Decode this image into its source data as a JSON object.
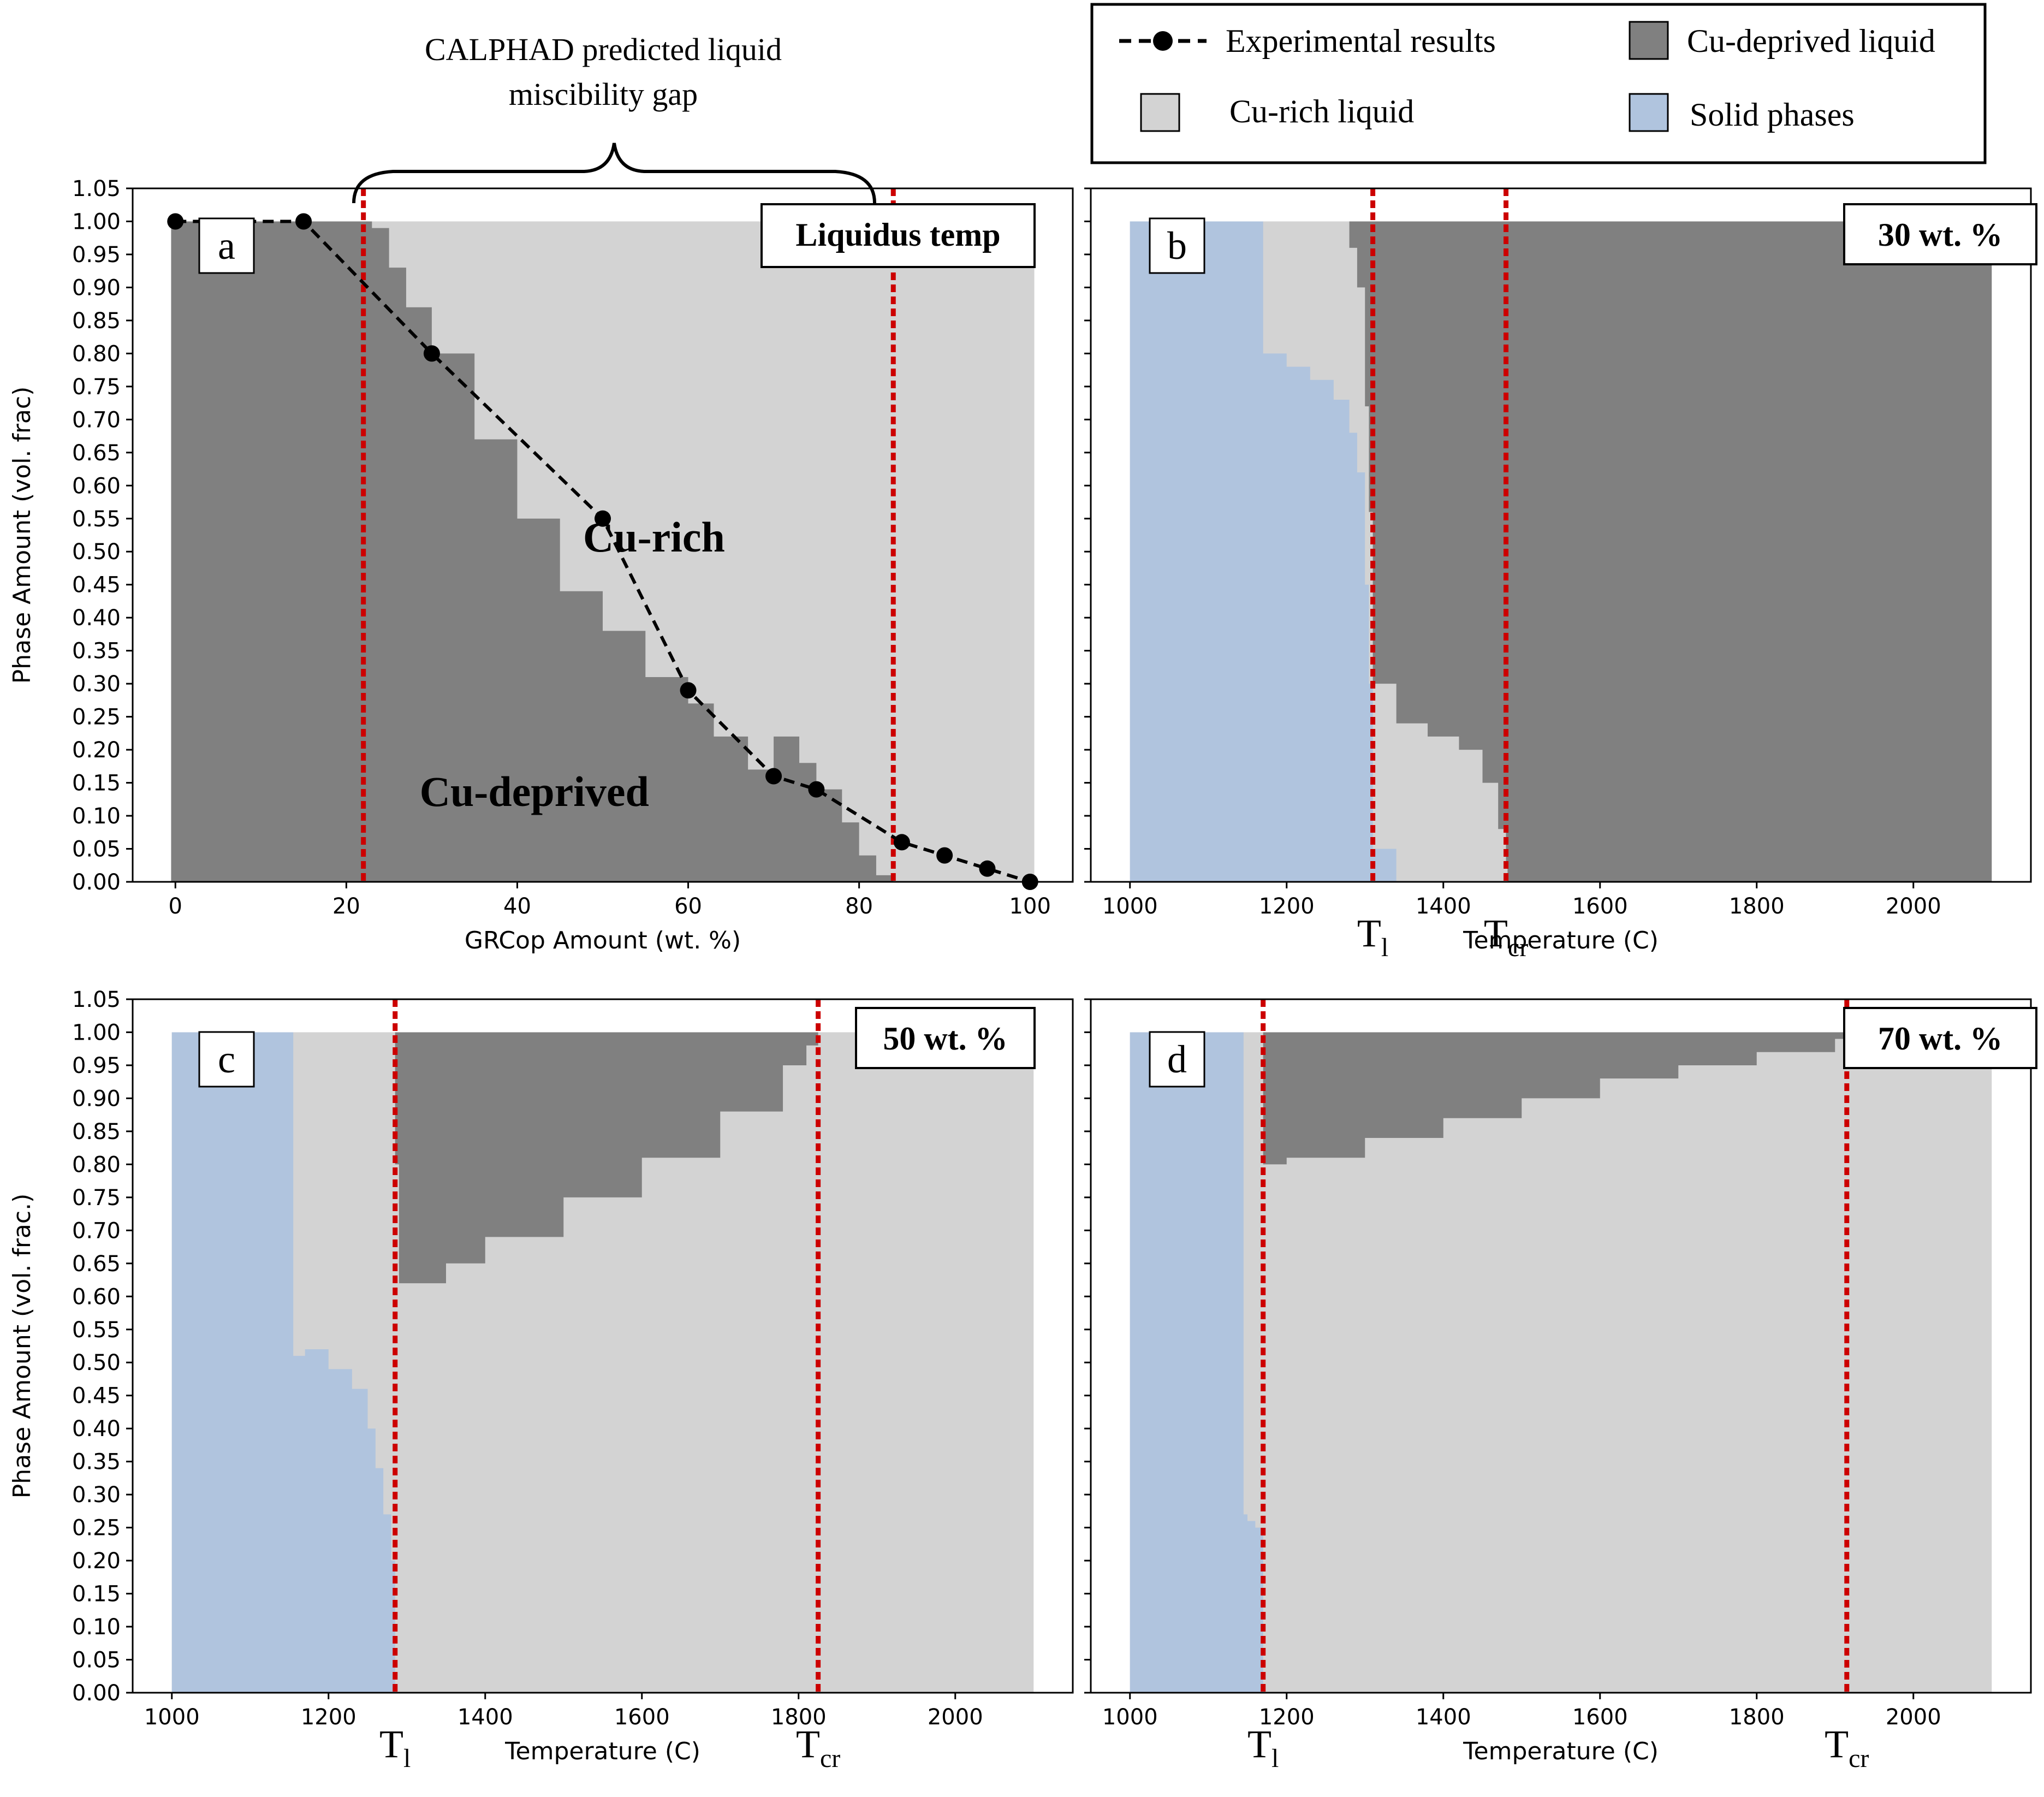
{
  "colors": {
    "cu_rich": "#d3d3d3",
    "cu_deprived": "#808080",
    "solid": "#b0c4de",
    "threshold": "#cc0000",
    "experimental": "#000000"
  },
  "legend": {
    "experimental": "Experimental results",
    "cu_deprived": "Cu-deprived liquid",
    "cu_rich": "Cu-rich liquid",
    "solid": "Solid phases"
  },
  "annotation": {
    "gap_line1": "CALPHAD predicted liquid",
    "gap_line2": "miscibility gap"
  },
  "chart_data": [
    {
      "id": "a",
      "type": "area",
      "panel_label": "a",
      "badge": "Liquidus temp",
      "xlabel": "GRCop Amount (wt. %)",
      "ylabel": "Phase  Amount (vol. frac)",
      "xlim": [
        -5,
        105
      ],
      "ylim": [
        0,
        1.05
      ],
      "xticks": [
        0,
        20,
        40,
        60,
        80,
        100
      ],
      "yticks": [
        0.0,
        0.05,
        0.1,
        0.15,
        0.2,
        0.25,
        0.3,
        0.35,
        0.4,
        0.45,
        0.5,
        0.55,
        0.6,
        0.65,
        0.7,
        0.75,
        0.8,
        0.85,
        0.9,
        0.95,
        1.0,
        1.05
      ],
      "region_labels": {
        "cu_rich": "Cu-rich",
        "cu_deprived": "Cu-deprived"
      },
      "vlines": [
        22,
        84
      ],
      "deprived_boundary": {
        "x": [
          -0.5,
          22,
          22.5,
          23,
          25,
          27,
          30,
          35,
          40,
          45,
          50,
          55,
          60,
          63,
          67,
          70,
          73,
          75,
          78,
          80,
          82,
          84,
          100.5
        ],
        "y": [
          1.0,
          1.0,
          1.0,
          0.99,
          0.93,
          0.87,
          0.8,
          0.67,
          0.55,
          0.44,
          0.38,
          0.31,
          0.27,
          0.22,
          0.17,
          0.22,
          0.18,
          0.14,
          0.09,
          0.04,
          0.01,
          0.0,
          0.0
        ]
      },
      "experimental": {
        "x": [
          0,
          15,
          30,
          50,
          60,
          70,
          75,
          85,
          90,
          95,
          100
        ],
        "y": [
          1.0,
          1.0,
          0.8,
          0.55,
          0.29,
          0.16,
          0.14,
          0.06,
          0.04,
          0.02,
          0.0
        ]
      }
    },
    {
      "id": "b",
      "type": "area",
      "panel_label": "b",
      "badge": "30 wt. %",
      "xlabel": "Temperature (C)",
      "xlim": [
        950,
        2150
      ],
      "ylim": [
        0,
        1.05
      ],
      "xticks": [
        1000,
        1200,
        1400,
        1600,
        1800,
        2000
      ],
      "vlines": [
        1310,
        1480
      ],
      "t_labels": [
        {
          "x": 1310,
          "base": "T",
          "sub": "l"
        },
        {
          "x": 1480,
          "base": "T",
          "sub": "cr"
        }
      ],
      "stack": {
        "x": [
          1000,
          1160,
          1170,
          1200,
          1230,
          1260,
          1280,
          1290,
          1300,
          1305,
          1310,
          1340,
          1380,
          1420,
          1450,
          1470,
          1480,
          1482,
          2100
        ],
        "solid": [
          1.0,
          1.0,
          0.8,
          0.78,
          0.76,
          0.73,
          0.68,
          0.62,
          0.45,
          0.3,
          0.05,
          0.0,
          0.0,
          0.0,
          0.0,
          0.0,
          0.0,
          0.0,
          0.0
        ],
        "deprived": [
          0.0,
          0.0,
          0.0,
          0.0,
          0.0,
          0.0,
          0.04,
          0.1,
          0.28,
          0.44,
          0.7,
          0.76,
          0.78,
          0.8,
          0.85,
          0.92,
          0.97,
          1.0,
          1.0
        ]
      }
    },
    {
      "id": "c",
      "type": "area",
      "panel_label": "c",
      "badge": "50 wt. %",
      "xlabel": "Temperature (C)",
      "ylabel": "Phase  Amount (vol. frac.)",
      "xlim": [
        950,
        2150
      ],
      "ylim": [
        0,
        1.05
      ],
      "xticks": [
        1000,
        1200,
        1400,
        1600,
        1800,
        2000
      ],
      "yticks": [
        0.0,
        0.05,
        0.1,
        0.15,
        0.2,
        0.25,
        0.3,
        0.35,
        0.4,
        0.45,
        0.5,
        0.55,
        0.6,
        0.65,
        0.7,
        0.75,
        0.8,
        0.85,
        0.9,
        0.95,
        1.0,
        1.05
      ],
      "vlines": [
        1285,
        1825
      ],
      "t_labels": [
        {
          "x": 1285,
          "base": "T",
          "sub": "l"
        },
        {
          "x": 1825,
          "base": "T",
          "sub": "cr"
        }
      ],
      "stack": {
        "x": [
          1000,
          1150,
          1155,
          1170,
          1200,
          1230,
          1250,
          1260,
          1270,
          1280,
          1285,
          1290,
          1300,
          1350,
          1400,
          1500,
          1600,
          1700,
          1780,
          1810,
          1825,
          2100
        ],
        "solid": [
          1.0,
          1.0,
          0.51,
          0.52,
          0.49,
          0.46,
          0.4,
          0.34,
          0.27,
          0.2,
          0.0,
          0.0,
          0.0,
          0.0,
          0.0,
          0.0,
          0.0,
          0.0,
          0.0,
          0.0,
          0.0,
          0.0
        ],
        "deprived": [
          0.0,
          0.0,
          0.0,
          0.0,
          0.0,
          0.0,
          0.0,
          0.0,
          0.0,
          0.0,
          0.2,
          0.38,
          0.38,
          0.35,
          0.31,
          0.25,
          0.19,
          0.12,
          0.05,
          0.02,
          0.0,
          0.0
        ]
      }
    },
    {
      "id": "d",
      "type": "area",
      "panel_label": "d",
      "badge": "70 wt. %",
      "xlabel": "Temperature (C)",
      "xlim": [
        950,
        2150
      ],
      "ylim": [
        0,
        1.05
      ],
      "xticks": [
        1000,
        1200,
        1400,
        1600,
        1800,
        2000
      ],
      "vlines": [
        1170,
        1915
      ],
      "t_labels": [
        {
          "x": 1170,
          "base": "T",
          "sub": "l"
        },
        {
          "x": 1915,
          "base": "T",
          "sub": "cr"
        }
      ],
      "stack": {
        "x": [
          1000,
          1140,
          1145,
          1150,
          1160,
          1170,
          1175,
          1200,
          1300,
          1400,
          1500,
          1600,
          1700,
          1800,
          1900,
          1915,
          2100
        ],
        "solid": [
          1.0,
          1.0,
          0.27,
          0.26,
          0.25,
          0.0,
          0.0,
          0.0,
          0.0,
          0.0,
          0.0,
          0.0,
          0.0,
          0.0,
          0.0,
          0.0,
          0.0
        ],
        "deprived": [
          0.0,
          0.0,
          0.0,
          0.0,
          0.0,
          0.2,
          0.2,
          0.19,
          0.16,
          0.13,
          0.1,
          0.07,
          0.05,
          0.03,
          0.01,
          0.0,
          0.0
        ]
      }
    }
  ]
}
